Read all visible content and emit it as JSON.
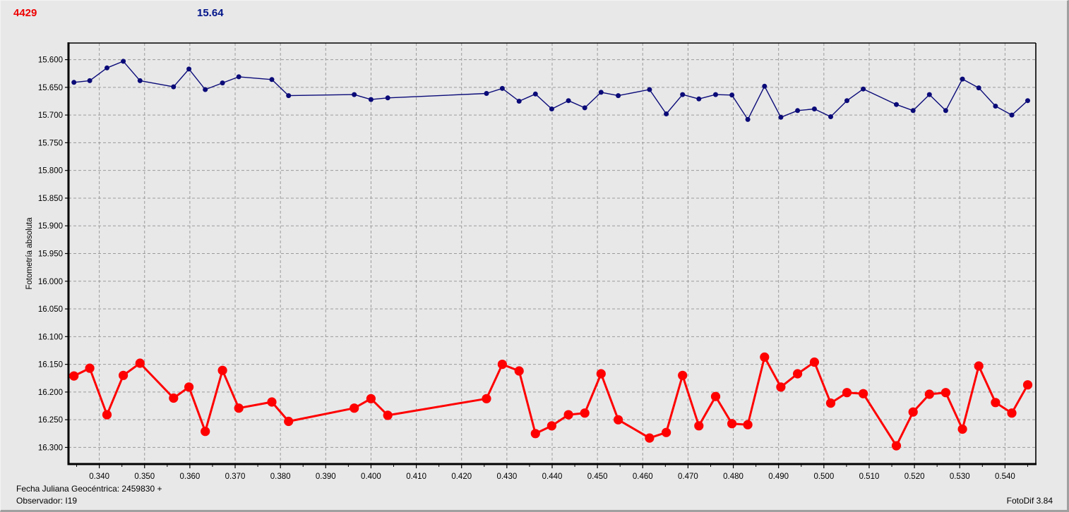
{
  "header": {
    "object_number": "4429",
    "object_color": "#ee0000",
    "comparison_value": "15.64",
    "comparison_color": "#001489"
  },
  "footer": {
    "julian_date_label": "Fecha Juliana Geocéntrica: 2459830 +",
    "observer_label": "Observador: I19",
    "app_version": "FotoDif 3.84"
  },
  "chart_data": {
    "type": "line",
    "title": "",
    "xlabel": "",
    "ylabel": "Fotometría absoluta",
    "x_axis": {
      "min_label": 0.34,
      "max_label": 0.54,
      "major_step": 0.01,
      "minor_step": 0.005,
      "range": [
        0.3332,
        0.5468
      ],
      "decimals": 3
    },
    "y_axis": {
      "min_label": 15.6,
      "max_label": 16.3,
      "major_step": 0.05,
      "range": [
        15.57,
        16.33
      ],
      "inverted_magnitude_scale": true,
      "decimals": 3
    },
    "grid": {
      "style": "dashed",
      "color": "#9b9b9b",
      "frame_color": "#000000"
    },
    "legend": "none",
    "x": [
      0.3344,
      0.3379,
      0.3417,
      0.3453,
      0.349,
      0.3564,
      0.3598,
      0.3634,
      0.3672,
      0.3708,
      0.3781,
      0.3818,
      0.3963,
      0.4,
      0.4037,
      0.4255,
      0.429,
      0.4327,
      0.4363,
      0.4399,
      0.4436,
      0.4472,
      0.4508,
      0.4546,
      0.4615,
      0.4652,
      0.4688,
      0.4724,
      0.4761,
      0.4797,
      0.4832,
      0.4869,
      0.4905,
      0.4942,
      0.4979,
      0.5015,
      0.5051,
      0.5087,
      0.516,
      0.5197,
      0.5233,
      0.5269,
      0.5306,
      0.5342,
      0.5379,
      0.5415,
      0.545
    ],
    "series": [
      {
        "name": "comparison-star-15.64",
        "color": "#0a0a78",
        "marker_radius": 3.5,
        "line_width": 1.4,
        "values": [
          15.641,
          15.638,
          15.615,
          15.603,
          15.638,
          15.649,
          15.617,
          15.654,
          15.642,
          15.631,
          15.636,
          15.665,
          15.663,
          15.672,
          15.669,
          15.661,
          15.652,
          15.675,
          15.662,
          15.689,
          15.674,
          15.687,
          15.659,
          15.665,
          15.654,
          15.698,
          15.663,
          15.671,
          15.663,
          15.664,
          15.708,
          15.648,
          15.704,
          15.692,
          15.689,
          15.703,
          15.674,
          15.653,
          15.681,
          15.692,
          15.663,
          15.692,
          15.635,
          15.651,
          15.684,
          15.7,
          15.674
        ]
      },
      {
        "name": "asteroid-4429",
        "color": "#ff0000",
        "marker_radius": 6.6,
        "line_width": 3,
        "values": [
          16.171,
          16.157,
          16.241,
          16.17,
          16.148,
          16.211,
          16.191,
          16.271,
          16.161,
          16.229,
          16.218,
          16.253,
          16.229,
          16.212,
          16.242,
          16.212,
          16.15,
          16.162,
          16.275,
          16.261,
          16.241,
          16.238,
          16.167,
          16.25,
          16.283,
          16.273,
          16.17,
          16.261,
          16.208,
          16.257,
          16.259,
          16.137,
          16.191,
          16.167,
          16.146,
          16.22,
          16.201,
          16.203,
          16.297,
          16.236,
          16.204,
          16.201,
          16.267,
          16.153,
          16.219,
          16.238,
          16.187
        ]
      }
    ]
  }
}
